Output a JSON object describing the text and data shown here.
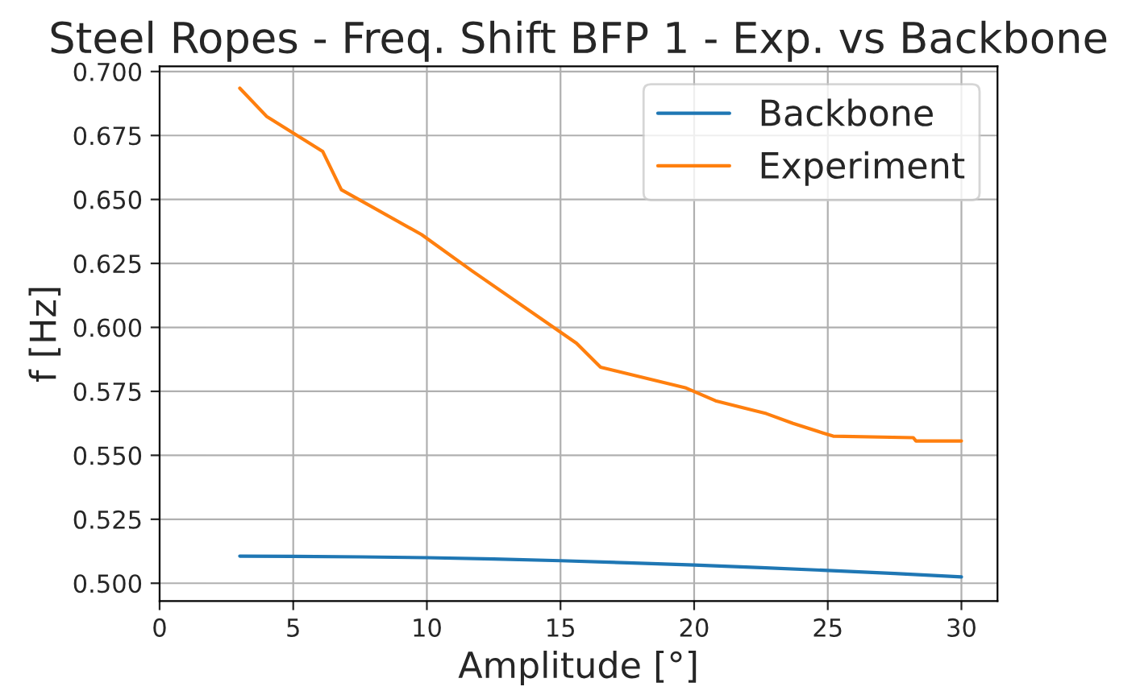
{
  "chart_data": {
    "type": "line",
    "title": "Steel Ropes - Freq. Shift BFP 1 - Exp. vs Backbone",
    "xlabel": "Amplitude [°]",
    "ylabel": "f [Hz]",
    "series": [
      {
        "name": "Backbone",
        "color": "#1f77b4",
        "x": [
          3,
          5,
          7.5,
          10,
          12.5,
          15,
          17.5,
          20,
          22.5,
          25,
          27.5,
          30
        ],
        "values": [
          0.5106,
          0.5105,
          0.5103,
          0.51,
          0.5095,
          0.5088,
          0.508,
          0.5071,
          0.5061,
          0.505,
          0.5038,
          0.5025
        ]
      },
      {
        "name": "Experiment",
        "color": "#ff7f0e",
        "x": [
          3.0,
          4.0,
          6.1,
          6.8,
          9.8,
          11.7,
          15.6,
          16.5,
          19.7,
          20.8,
          22.7,
          23.7,
          24.8,
          25.2,
          28.2,
          28.3,
          30.0
        ],
        "values": [
          0.6935,
          0.6825,
          0.6688,
          0.6538,
          0.6363,
          0.622,
          0.5938,
          0.5844,
          0.5763,
          0.5713,
          0.5663,
          0.5625,
          0.5588,
          0.5575,
          0.5569,
          0.5556,
          0.5556
        ]
      }
    ],
    "xlim": [
      0,
      31.35
    ],
    "ylim": [
      0.493,
      0.702
    ],
    "xticks": [
      0,
      5,
      10,
      15,
      20,
      25,
      30
    ],
    "yticks": [
      {
        "value": 0.5,
        "label": "0.500"
      },
      {
        "value": 0.525,
        "label": "0.525"
      },
      {
        "value": 0.55,
        "label": "0.550"
      },
      {
        "value": 0.575,
        "label": "0.575"
      },
      {
        "value": 0.6,
        "label": "0.600"
      },
      {
        "value": 0.625,
        "label": "0.625"
      },
      {
        "value": 0.65,
        "label": "0.650"
      },
      {
        "value": 0.675,
        "label": "0.675"
      },
      {
        "value": 0.7,
        "label": "0.700"
      }
    ],
    "grid": true,
    "legend": "top right",
    "marker": "none",
    "line_style": "solid"
  }
}
